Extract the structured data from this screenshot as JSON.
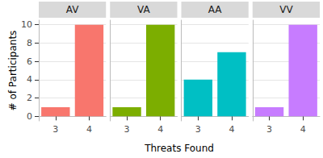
{
  "chart_data": [
    {
      "type": "bar",
      "title": "AV",
      "categories": [
        "3",
        "4"
      ],
      "values": [
        1,
        10
      ],
      "color": "#F8766D",
      "ylim": [
        -0.5,
        10.5
      ],
      "yticks": [
        0,
        2,
        4,
        6,
        8,
        10
      ],
      "grid": true,
      "ylabel": "# of Participants",
      "xlabel": "Threats Found"
    },
    {
      "type": "bar",
      "title": "VA",
      "categories": [
        "3",
        "4"
      ],
      "values": [
        1,
        10
      ],
      "color": "#7CAE00",
      "ylim": [
        -0.5,
        10.5
      ],
      "yticks": [
        0,
        2,
        4,
        6,
        8,
        10
      ],
      "grid": true
    },
    {
      "type": "bar",
      "title": "AA",
      "categories": [
        "3",
        "4"
      ],
      "values": [
        4,
        7
      ],
      "color": "#00BFC4",
      "ylim": [
        -0.5,
        10.5
      ],
      "yticks": [
        0,
        2,
        4,
        6,
        8,
        10
      ],
      "grid": true
    },
    {
      "type": "bar",
      "title": "VV",
      "categories": [
        "3",
        "4"
      ],
      "values": [
        1,
        10
      ],
      "color": "#C77CFF",
      "ylim": [
        -0.5,
        10.5
      ],
      "yticks": [
        0,
        2,
        4,
        6,
        8,
        10
      ],
      "grid": true
    }
  ]
}
